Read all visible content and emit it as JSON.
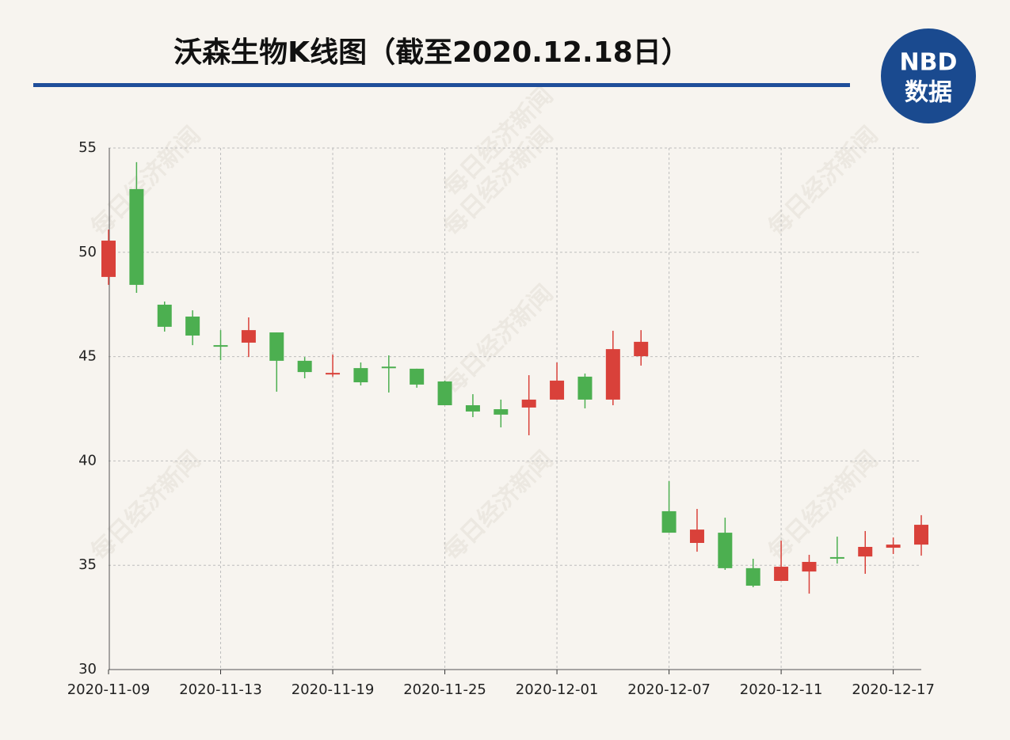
{
  "chart_data": {
    "type": "candlestick",
    "title": "沃森生物K线图（截至2020.12.18日）",
    "logo": {
      "top": "NBD",
      "bottom": "数据"
    },
    "watermark": "每日经济新闻",
    "categories": [
      "2020-11-09",
      null,
      null,
      null,
      "2020-11-13",
      null,
      null,
      null,
      "2020-11-19",
      null,
      null,
      null,
      "2020-11-25",
      null,
      null,
      null,
      "2020-12-01",
      null,
      null,
      null,
      "2020-12-07",
      null,
      null,
      null,
      "2020-12-11",
      null,
      null,
      null,
      "2020-12-17",
      null
    ],
    "open": [
      48.82,
      53.03,
      47.49,
      46.92,
      45.55,
      45.67,
      46.16,
      44.8,
      44.15,
      44.45,
      44.52,
      44.42,
      43.81,
      42.67,
      42.48,
      42.56,
      42.94,
      44.04,
      42.94,
      45.02,
      37.59,
      36.07,
      36.56,
      34.86,
      34.25,
      34.7,
      35.39,
      35.42,
      35.84,
      35.99
    ],
    "high": [
      51.09,
      54.32,
      47.64,
      47.22,
      46.27,
      46.88,
      46.16,
      44.98,
      45.1,
      44.72,
      45.06,
      44.42,
      43.85,
      43.2,
      42.94,
      44.11,
      44.72,
      44.19,
      46.24,
      46.27,
      39.03,
      37.7,
      37.28,
      35.31,
      36.18,
      35.5,
      36.37,
      36.64,
      36.33,
      37.4
    ],
    "low": [
      48.44,
      48.06,
      46.2,
      45.55,
      44.83,
      44.98,
      43.32,
      43.96,
      44.04,
      43.62,
      43.28,
      43.51,
      42.67,
      42.1,
      41.61,
      41.23,
      42.94,
      42.52,
      42.67,
      44.57,
      36.56,
      35.65,
      34.78,
      33.95,
      34.25,
      33.64,
      35.08,
      34.59,
      35.54,
      35.46
    ],
    "close": [
      50.56,
      48.44,
      46.43,
      46.01,
      45.5,
      46.27,
      44.8,
      44.26,
      44.22,
      43.77,
      44.45,
      43.66,
      42.67,
      42.37,
      42.22,
      42.94,
      43.85,
      42.94,
      45.36,
      45.71,
      36.56,
      36.71,
      34.86,
      34.02,
      34.93,
      35.16,
      35.35,
      35.88,
      35.99,
      36.94
    ],
    "up_color": "#d9413a",
    "down_color": "#4caf50",
    "ylim": [
      30,
      55
    ],
    "yticks": [
      30,
      35,
      40,
      45,
      50,
      55
    ],
    "grid": true
  }
}
